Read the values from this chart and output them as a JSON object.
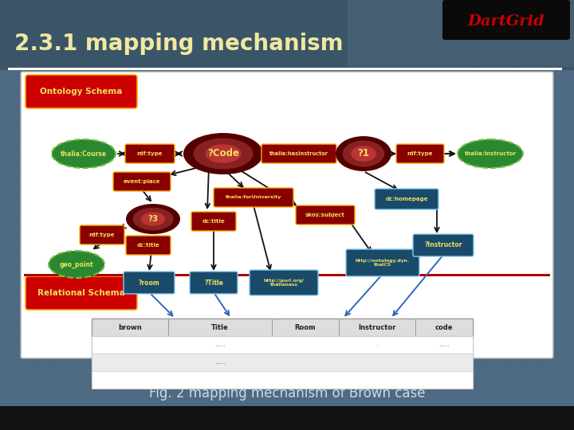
{
  "title": "2.3.1 mapping mechanism",
  "logo": "DartGrid",
  "caption": "Fig. 2 mapping mechanism of Brown case",
  "title_color": "#f0e8a0",
  "logo_color": "#cc0000",
  "caption_color": "#c8dce8",
  "ontology_label": "Ontology Schema",
  "relational_label": "Relational Schema",
  "table_headers": [
    "brown",
    "Title",
    "Room",
    "Instructor",
    "code"
  ]
}
